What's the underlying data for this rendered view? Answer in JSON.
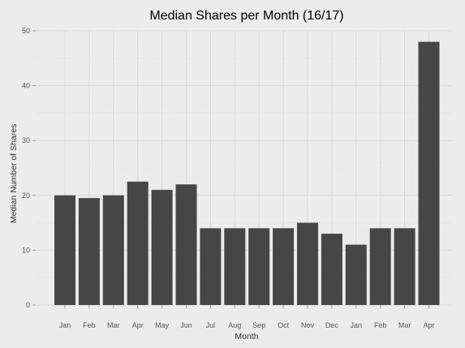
{
  "chart_data": {
    "type": "bar",
    "title": "Median Shares per Month (16/17)",
    "xlabel": "Month",
    "ylabel": "Median Number of Shares",
    "categories": [
      "Jan",
      "Feb",
      "Mar",
      "Apr",
      "May",
      "Jun",
      "Jul",
      "Aug",
      "Sep",
      "Oct",
      "Nov",
      "Dec",
      "Jan",
      "Feb",
      "Mar",
      "Apr"
    ],
    "values": [
      20,
      19.5,
      20,
      22.5,
      21,
      22,
      14,
      14,
      14,
      14,
      15,
      13,
      11,
      14,
      14,
      48
    ],
    "ylim": [
      0,
      50
    ],
    "yticks": [
      0,
      10,
      20,
      30,
      40,
      50
    ],
    "grid": true,
    "bar_color": "#464646",
    "background": "#ececec"
  }
}
